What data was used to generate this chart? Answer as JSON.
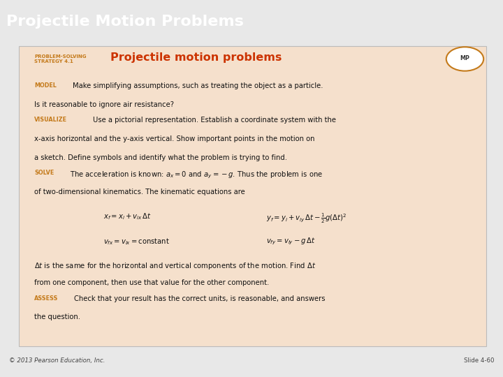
{
  "title": "Projectile Motion Problems",
  "title_bg": "#3d3d9e",
  "title_color": "#ffffff",
  "title_fontsize": 16,
  "card_bg": "#f5e0cc",
  "slide_bg": "#e8e8e8",
  "strategy_label_color": "#c47a1a",
  "strategy_title_color": "#cc3300",
  "footer_left": "© 2013 Pearson Education, Inc.",
  "footer_right": "Slide 4-60",
  "footer_color": "#444444",
  "keyword_color": "#c47a1a",
  "body_color": "#111111"
}
